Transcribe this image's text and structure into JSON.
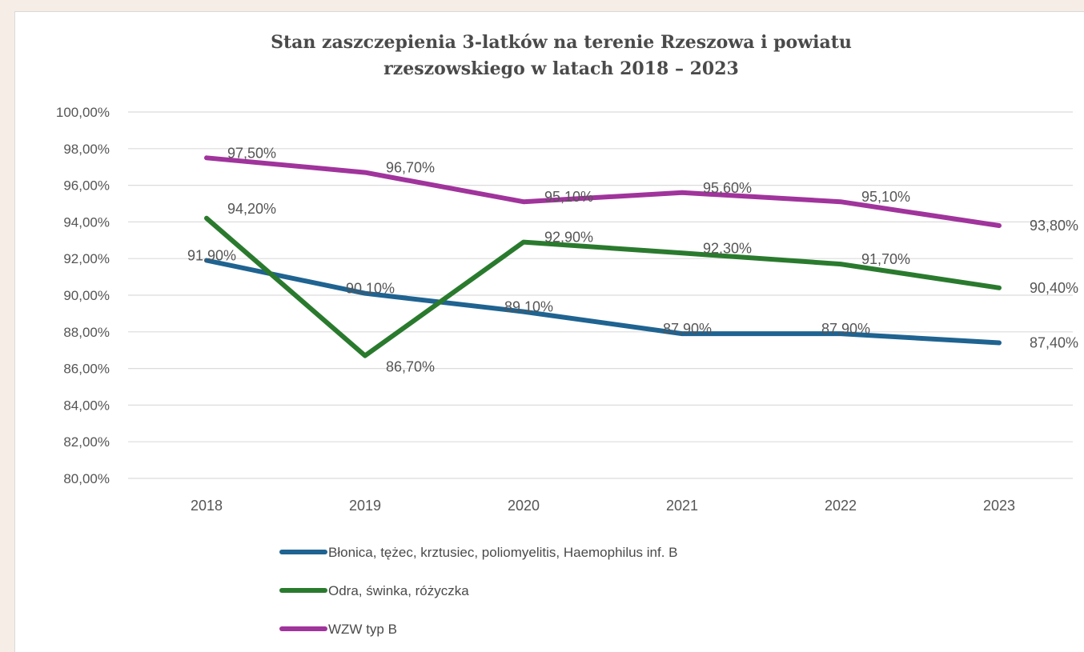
{
  "chart_data": {
    "type": "line",
    "title": [
      "Stan zaszczepienia 3-latków na terenie Rzeszowa i powiatu",
      "rzeszowskiego w latach 2018 – 2023"
    ],
    "x": [
      "2018",
      "2019",
      "2020",
      "2021",
      "2022",
      "2023"
    ],
    "y_ticks": [
      "100,00%",
      "98,00%",
      "96,00%",
      "94,00%",
      "92,00%",
      "90,00%",
      "88,00%",
      "86,00%",
      "84,00%",
      "82,00%",
      "80,00%"
    ],
    "ylim": [
      80,
      100
    ],
    "grid": true,
    "legend_position": "bottom",
    "series": [
      {
        "name": "Błonica, tężec, krztusiec, poliomyelitis, Haemophilus inf. B",
        "color": "#1f6391",
        "values": [
          91.9,
          90.1,
          89.1,
          87.9,
          87.9,
          87.4
        ],
        "labels": [
          "91,90%",
          "90,10%",
          "89,10%",
          "87,90%",
          "87,90%",
          "87,40%"
        ]
      },
      {
        "name": "Odra, świnka, różyczka",
        "color": "#2a7a2e",
        "values": [
          94.2,
          86.7,
          92.9,
          92.3,
          91.7,
          90.4
        ],
        "labels": [
          "94,20%",
          "86,70%",
          "92,90%",
          "92,30%",
          "91,70%",
          "90,40%"
        ]
      },
      {
        "name": "WZW typ B",
        "color": "#a0349c",
        "values": [
          97.5,
          96.7,
          95.1,
          95.6,
          95.1,
          93.8
        ],
        "labels": [
          "97,50%",
          "96,70%",
          "95,10%",
          "95,60%",
          "95,10%",
          "93,80%"
        ]
      }
    ]
  }
}
